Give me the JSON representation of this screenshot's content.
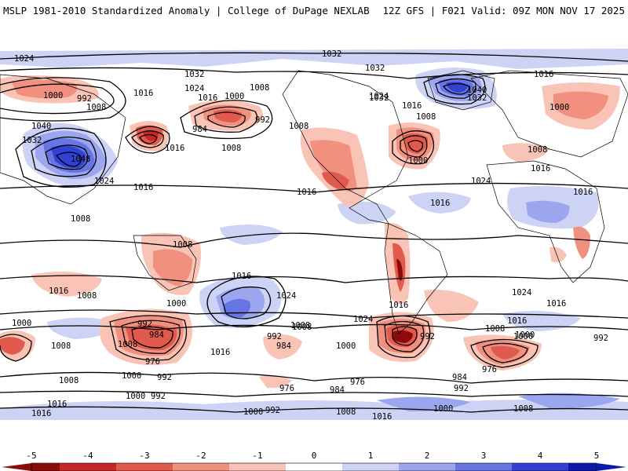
{
  "header": {
    "left": "MSLP 1981-2010 Standardized Anomaly | College of DuPage NEXLAB",
    "right": "12Z GFS | F021 Valid: 09Z MON NOV 17 2025"
  },
  "colors": {
    "neg5": "#8b0a0a",
    "neg4": "#c62828",
    "neg3": "#e05a4e",
    "neg2": "#f1907f",
    "neg1": "#f9c3b6",
    "zero": "#ffffff",
    "pos1": "#cdd3f5",
    "pos2": "#9ca6ee",
    "pos3": "#6774e3",
    "pos4": "#3141d4",
    "pos5": "#0d1aa8"
  },
  "isobars": [
    {
      "label": "1024",
      "name": "isobar-label-1024-nw"
    },
    {
      "label": "1032",
      "name": "isobar-label-1032-arctic"
    },
    {
      "label": "1032",
      "name": "isobar-label-1032-siberia-north"
    },
    {
      "label": "1032",
      "name": "isobar-label-1032-pacific"
    },
    {
      "label": "1032",
      "name": "isobar-label-1032-canada"
    },
    {
      "label": "1032",
      "name": "isobar-label-1032-greenland"
    },
    {
      "label": "1040",
      "name": "isobar-label-1040-greenland"
    },
    {
      "label": "1016",
      "name": "isobar-label-1016-ne"
    },
    {
      "label": "1000",
      "name": "isobar-label-1000-nw"
    },
    {
      "label": "992",
      "name": "isobar-label-992-nw"
    },
    {
      "label": "1008",
      "name": "isobar-label-1008-nw"
    },
    {
      "label": "1016",
      "name": "isobar-label-1016-aleutian"
    },
    {
      "label": "1024",
      "name": "isobar-label-1024-npac"
    },
    {
      "label": "1016",
      "name": "isobar-label-1016-npac"
    },
    {
      "label": "1000",
      "name": "isobar-label-1000-goa"
    },
    {
      "label": "1008",
      "name": "isobar-label-1008-goa"
    },
    {
      "label": "984",
      "name": "isobar-label-984-goa"
    },
    {
      "label": "992",
      "name": "isobar-label-992-goa"
    },
    {
      "label": "1008",
      "name": "isobar-label-1008-npac-east"
    },
    {
      "label": "1024",
      "name": "isobar-label-1024-midcanada"
    },
    {
      "label": "1016",
      "name": "isobar-label-1016-hudson"
    },
    {
      "label": "1008",
      "name": "isobar-label-1008-labrador"
    },
    {
      "label": "1000",
      "name": "isobar-label-1000-eastcoast"
    },
    {
      "label": "1024",
      "name": "isobar-label-1024-natl"
    },
    {
      "label": "1000",
      "name": "isobar-label-1000-europe"
    },
    {
      "label": "1008",
      "name": "isobar-label-1008-europe"
    },
    {
      "label": "1016",
      "name": "isobar-label-1016-europe"
    },
    {
      "label": "1032",
      "name": "isobar-label-1032-asia"
    },
    {
      "label": "1040",
      "name": "isobar-label-1040-asia"
    },
    {
      "label": "1048",
      "name": "isobar-label-1048-asia"
    },
    {
      "label": "1024",
      "name": "isobar-label-1024-china"
    },
    {
      "label": "1016",
      "name": "isobar-label-1016-siberia"
    },
    {
      "label": "1016",
      "name": "isobar-label-1016-pacific-high"
    },
    {
      "label": "1008",
      "name": "isobar-label-1008-hawaii"
    },
    {
      "label": "1008",
      "name": "isobar-label-1008-eastasia"
    },
    {
      "label": "1016",
      "name": "isobar-label-1016-us"
    },
    {
      "label": "1016",
      "name": "isobar-label-1016-atlantic"
    },
    {
      "label": "1008",
      "name": "isobar-label-1008-indonesia"
    },
    {
      "label": "1016",
      "name": "isobar-label-1016-africa-east"
    },
    {
      "label": "1016",
      "name": "isobar-label-1016-sepac"
    },
    {
      "label": "1024",
      "name": "isobar-label-1024-sepac"
    },
    {
      "label": "1016",
      "name": "isobar-label-1016-samerica"
    },
    {
      "label": "1024",
      "name": "isobar-label-1024-satl"
    },
    {
      "label": "1024",
      "name": "isobar-label-1024-sindian"
    },
    {
      "label": "1016",
      "name": "isobar-label-1016-safrica"
    },
    {
      "label": "1016",
      "name": "isobar-label-1016-australia"
    },
    {
      "label": "1008",
      "name": "isobar-label-1008-australia"
    },
    {
      "label": "1000",
      "name": "isobar-label-1000-aus-east"
    },
    {
      "label": "1000",
      "name": "isobar-label-1000-west"
    },
    {
      "label": "1008",
      "name": "isobar-label-1008-west"
    },
    {
      "label": "992",
      "name": "isobar-label-992-tasman"
    },
    {
      "label": "984",
      "name": "isobar-label-984-tasman"
    },
    {
      "label": "976",
      "name": "isobar-label-976-tasman"
    },
    {
      "label": "1000",
      "name": "isobar-label-1000-spac"
    },
    {
      "label": "992",
      "name": "isobar-label-992-spac"
    },
    {
      "label": "1008",
      "name": "isobar-label-1008-spac-west"
    },
    {
      "label": "1016",
      "name": "isobar-label-1016-spac-south"
    },
    {
      "label": "992",
      "name": "isobar-label-992-spac-mid"
    },
    {
      "label": "984",
      "name": "isobar-label-984-spac-mid"
    },
    {
      "label": "1008",
      "name": "isobar-label-1008-spac-mid"
    },
    {
      "label": "1016",
      "name": "isobar-label-1016-spac-mid"
    },
    {
      "label": "1000",
      "name": "isobar-label-1000-drake"
    },
    {
      "label": "992",
      "name": "isobar-label-992-drake"
    },
    {
      "label": "1008",
      "name": "isobar-label-1008-satl"
    },
    {
      "label": "1000",
      "name": "isobar-label-1000-indian-south"
    },
    {
      "label": "992",
      "name": "isobar-label-992-indian-east"
    },
    {
      "label": "976",
      "name": "isobar-label-976-indian"
    },
    {
      "label": "984",
      "name": "isobar-label-984-indian"
    },
    {
      "label": "992",
      "name": "isobar-label-992-indian"
    },
    {
      "label": "1008",
      "name": "isobar-label-1008-indian-mid"
    },
    {
      "label": "1016",
      "name": "isobar-label-1016-indian-mid"
    },
    {
      "label": "976",
      "name": "isobar-label-976-southern"
    },
    {
      "label": "984",
      "name": "isobar-label-984-southern"
    },
    {
      "label": "976",
      "name": "isobar-label-976-southern-2"
    },
    {
      "label": "1000",
      "name": "isobar-label-1000-antarctic"
    },
    {
      "label": "992",
      "name": "isobar-label-992-antarctic"
    },
    {
      "label": "1008",
      "name": "isobar-label-1008-antarctic"
    },
    {
      "label": "1016",
      "name": "isobar-label-1016-antarctic"
    },
    {
      "label": "1016",
      "name": "isobar-label-1016-antarctic-west"
    },
    {
      "label": "1000",
      "name": "isobar-label-1000-antarctic-2"
    },
    {
      "label": "1008",
      "name": "isobar-label-1008-antarctic-east"
    },
    {
      "label": "1000",
      "name": "isobar-label-1000-antarctic-east"
    },
    {
      "label": "992",
      "name": "isobar-label-992-antarctic-west"
    },
    {
      "label": "1000",
      "name": "isobar-label-1000-antarctic-west"
    },
    {
      "label": "1008",
      "name": "isobar-label-1008-antarctic-2"
    }
  ],
  "colorbar": {
    "ticks": [
      "-5",
      "-4",
      "-3",
      "-2",
      "-1",
      "0",
      "1",
      "2",
      "3",
      "4",
      "5"
    ]
  }
}
